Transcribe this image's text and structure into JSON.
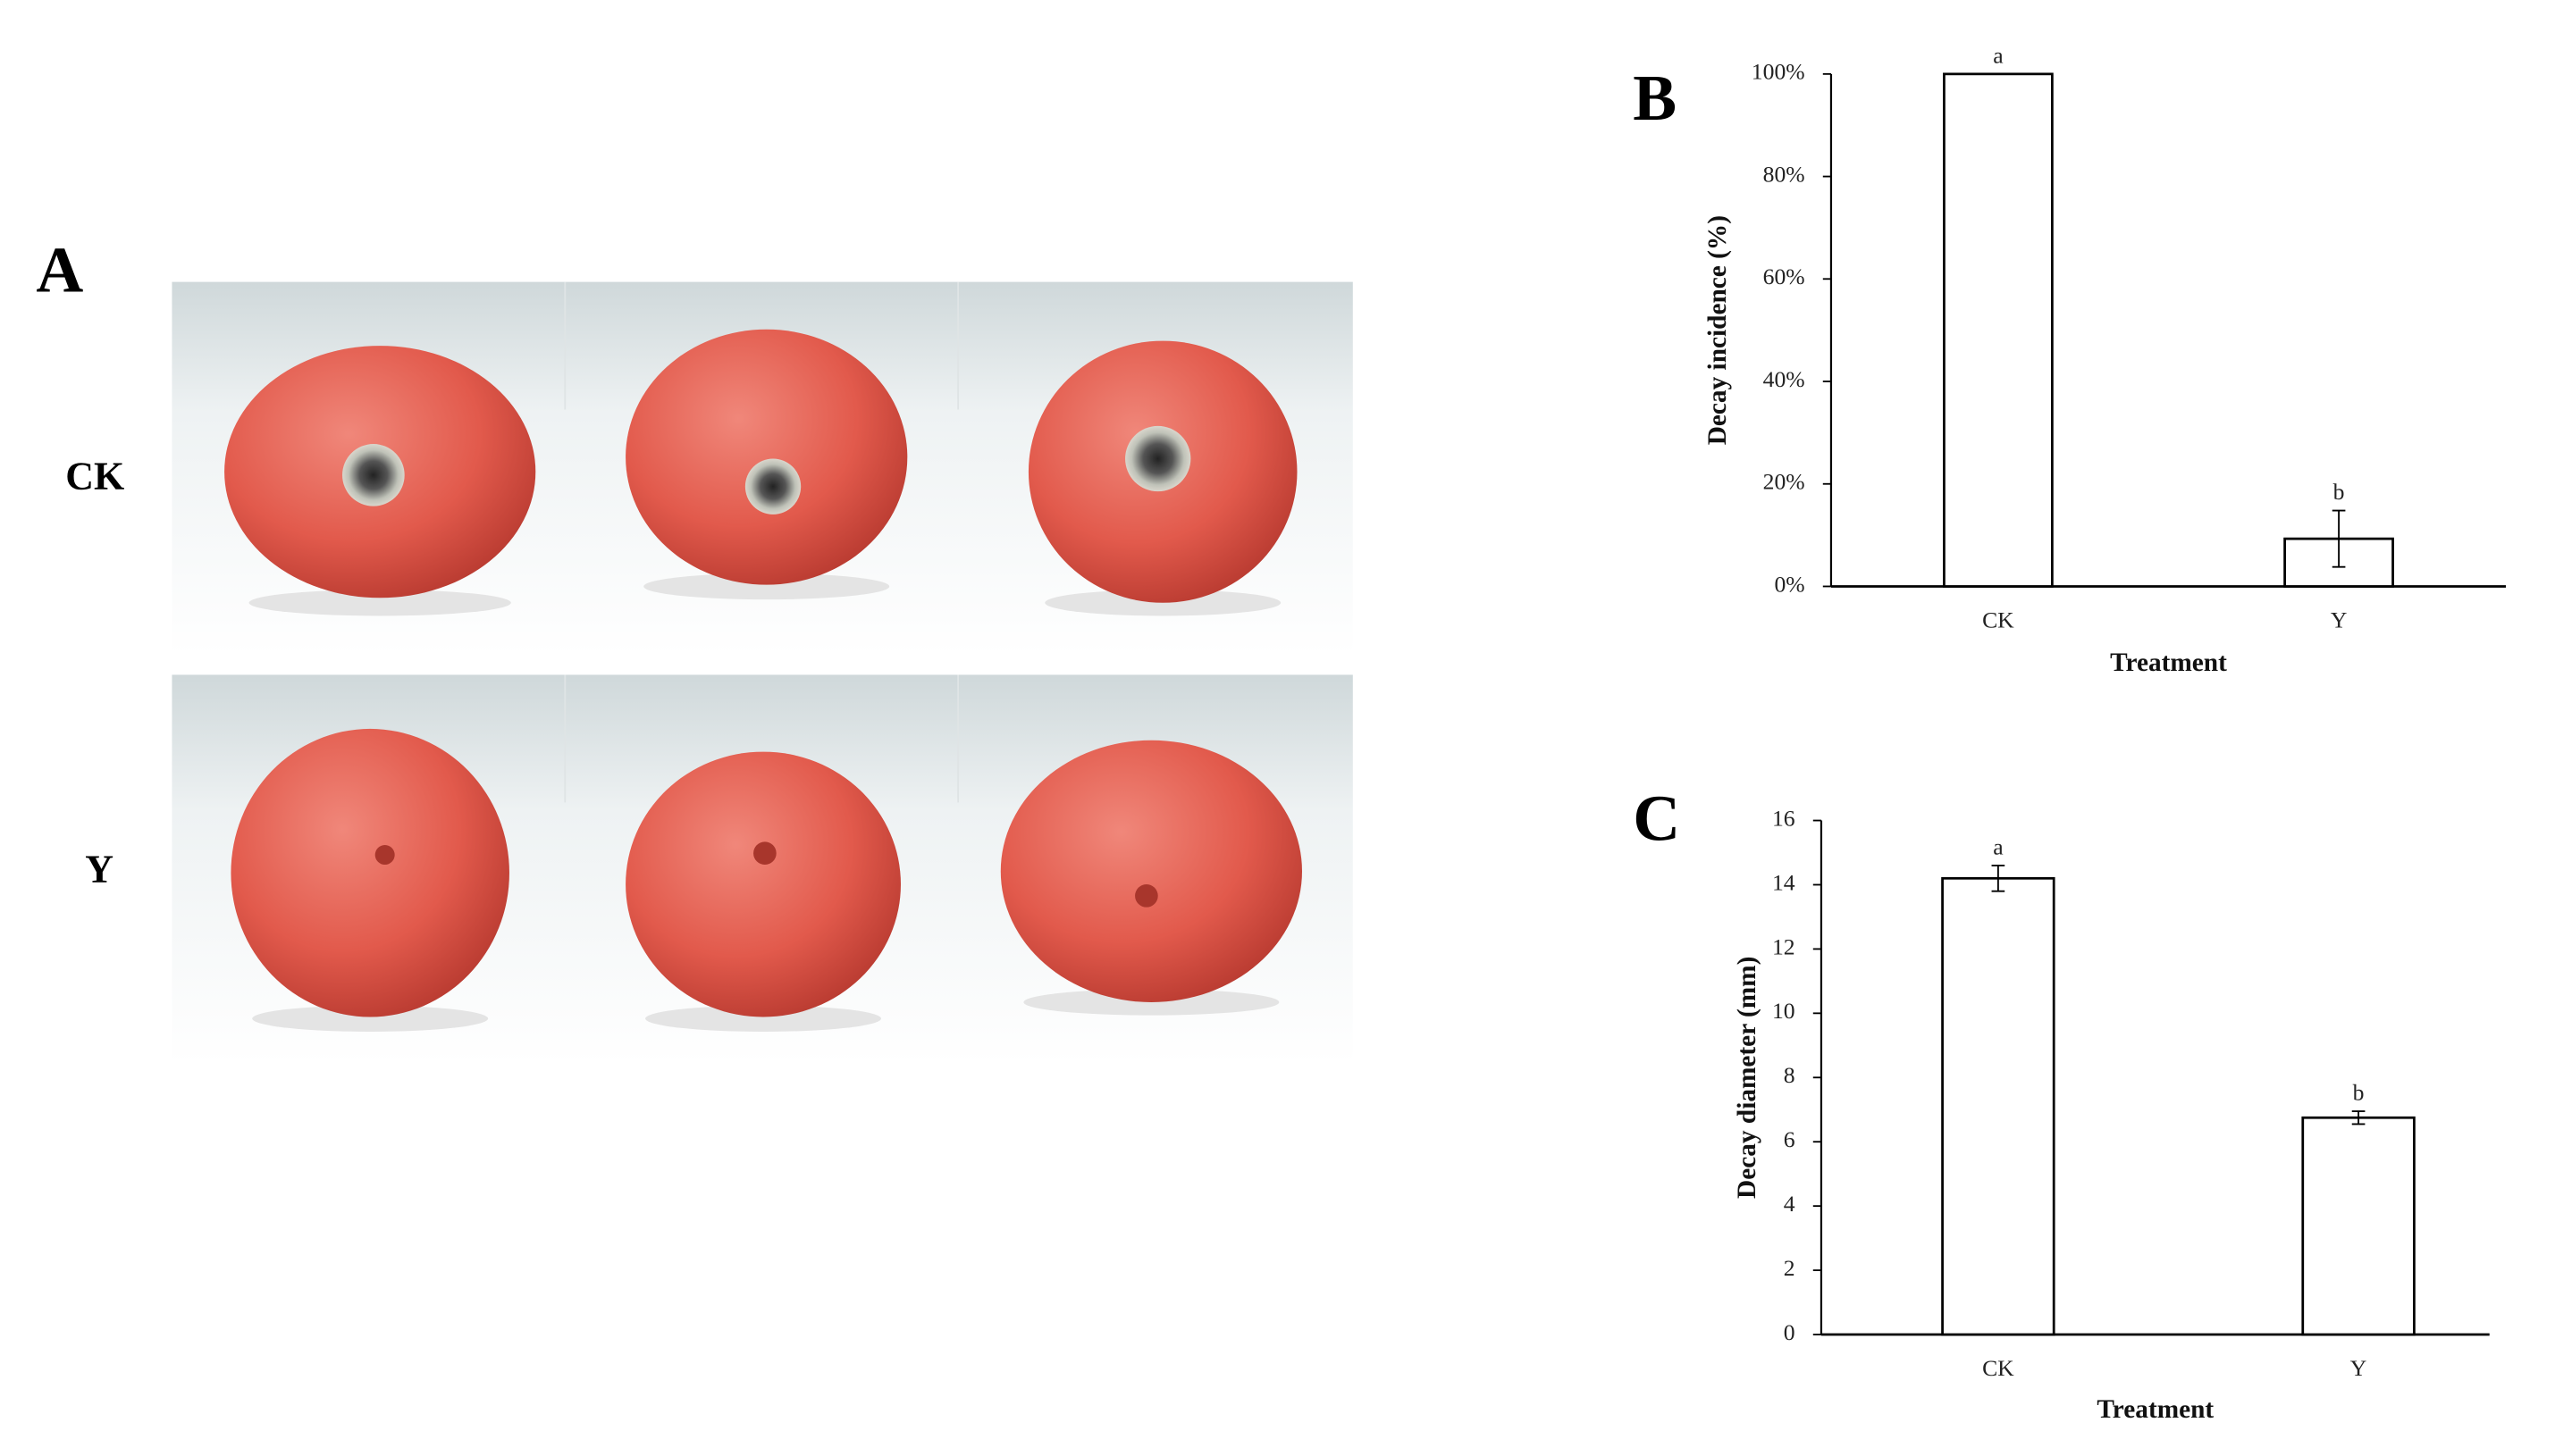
{
  "photo_panel": {
    "label": "A",
    "rows": [
      "CK",
      "Y"
    ]
  },
  "chart_data": [
    {
      "type": "bar",
      "panel_label": "B",
      "xlabel": "Treatment",
      "ylabel": "Decay incidence (%)",
      "categories": [
        "CK",
        "Y"
      ],
      "values": [
        100,
        9.3
      ],
      "errors": [
        0,
        5.5
      ],
      "significance": [
        "a",
        "b"
      ],
      "color": "#ffffff",
      "ylim": [
        0,
        100
      ],
      "yticks": [
        {
          "value": 0,
          "label": "0%"
        },
        {
          "value": 20,
          "label": "20%"
        },
        {
          "value": 40,
          "label": "40%"
        },
        {
          "value": 60,
          "label": "60%"
        },
        {
          "value": 80,
          "label": "80%"
        },
        {
          "value": 100,
          "label": "100%"
        }
      ],
      "grid": false
    },
    {
      "type": "bar",
      "panel_label": "C",
      "xlabel": "Treatment",
      "ylabel": "Decay diameter (mm)",
      "categories": [
        "CK",
        "Y"
      ],
      "values": [
        14.2,
        6.75
      ],
      "errors": [
        0.4,
        0.2
      ],
      "significance": [
        "a",
        "b"
      ],
      "color": "#ffffff",
      "ylim": [
        0,
        16
      ],
      "yticks": [
        0,
        2,
        4,
        6,
        8,
        10,
        12,
        14,
        16
      ],
      "grid": false
    }
  ]
}
